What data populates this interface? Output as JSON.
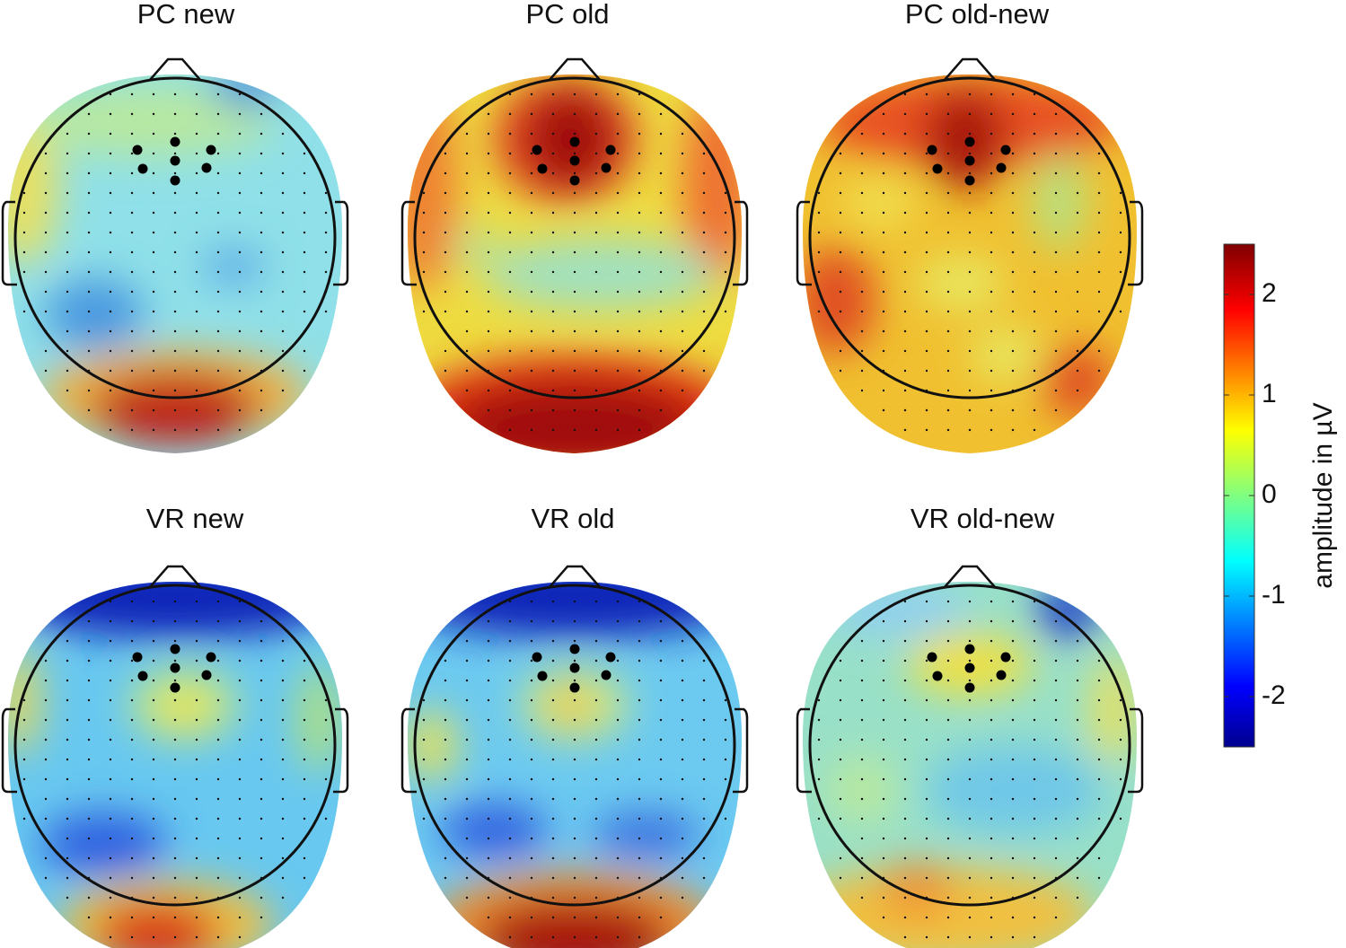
{
  "panels": [
    {
      "title": "PC new"
    },
    {
      "title": "PC old"
    },
    {
      "title": "PC old-new"
    },
    {
      "title": "VR new"
    },
    {
      "title": "VR old"
    },
    {
      "title": "VR old-new"
    }
  ],
  "colorbar": {
    "label": "amplitude  in µV",
    "lim": [
      -2.5,
      2.5
    ],
    "ticks": [
      -2,
      -1,
      0,
      1,
      2
    ]
  }
}
